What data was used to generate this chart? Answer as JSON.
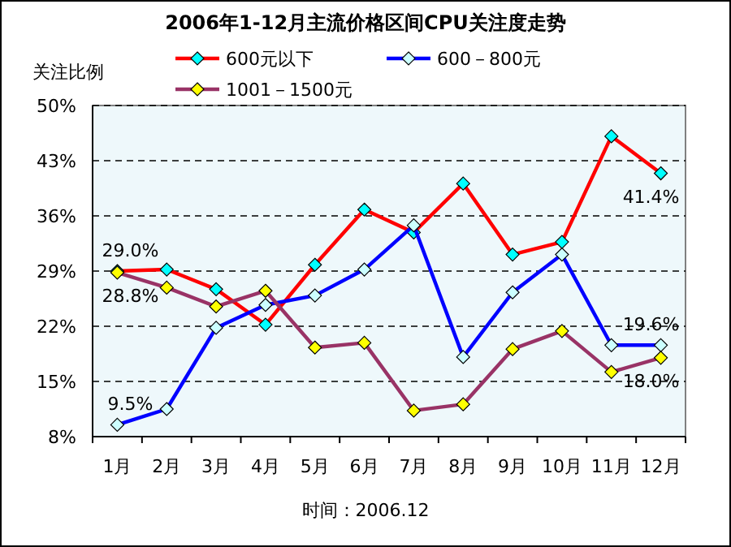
{
  "chart_data": {
    "type": "line",
    "title": "2006年1-12月主流价格区间CPU关注度走势",
    "ylabel": "关注比例",
    "categories": [
      "1月",
      "2月",
      "3月",
      "4月",
      "5月",
      "6月",
      "7月",
      "8月",
      "9月",
      "10月",
      "11月",
      "12月"
    ],
    "series": [
      {
        "name": "600元以下",
        "color": "#ff0000",
        "values": [
          29.0,
          29.2,
          26.7,
          22.2,
          29.8,
          36.8,
          33.9,
          40.1,
          31.1,
          32.7,
          46.1,
          41.4
        ],
        "value_labels": [
          "29.0%",
          null,
          null,
          null,
          null,
          null,
          null,
          null,
          null,
          null,
          null,
          "41.4%"
        ]
      },
      {
        "name": "600－800元",
        "color": "#0000ff",
        "values": [
          9.5,
          11.5,
          21.8,
          24.7,
          25.9,
          29.2,
          34.8,
          18.1,
          26.3,
          31.1,
          19.6,
          19.6
        ],
        "value_labels": [
          "9.5%",
          null,
          null,
          null,
          null,
          null,
          null,
          null,
          null,
          null,
          null,
          "19.6%"
        ]
      },
      {
        "name": "1001－1500元",
        "color": "#993366",
        "values": [
          28.8,
          26.9,
          24.5,
          26.5,
          19.3,
          19.9,
          11.3,
          12.1,
          19.1,
          21.4,
          16.2,
          18.0
        ],
        "value_labels": [
          "28.8%",
          null,
          null,
          null,
          null,
          null,
          null,
          null,
          null,
          null,
          null,
          "18.0%"
        ]
      }
    ],
    "ylim": [
      8,
      50
    ],
    "yticks": [
      {
        "value": 8,
        "label": "8%"
      },
      {
        "value": 15,
        "label": "15%"
      },
      {
        "value": 22,
        "label": "22%"
      },
      {
        "value": 29,
        "label": "29%"
      },
      {
        "value": 36,
        "label": "36%"
      },
      {
        "value": 43,
        "label": "43%"
      },
      {
        "value": 50,
        "label": "50%"
      }
    ],
    "grid": "y",
    "legend": "top",
    "marker": "diamond",
    "line_style": "solid",
    "annotations": [
      "时间：2006.12"
    ]
  }
}
